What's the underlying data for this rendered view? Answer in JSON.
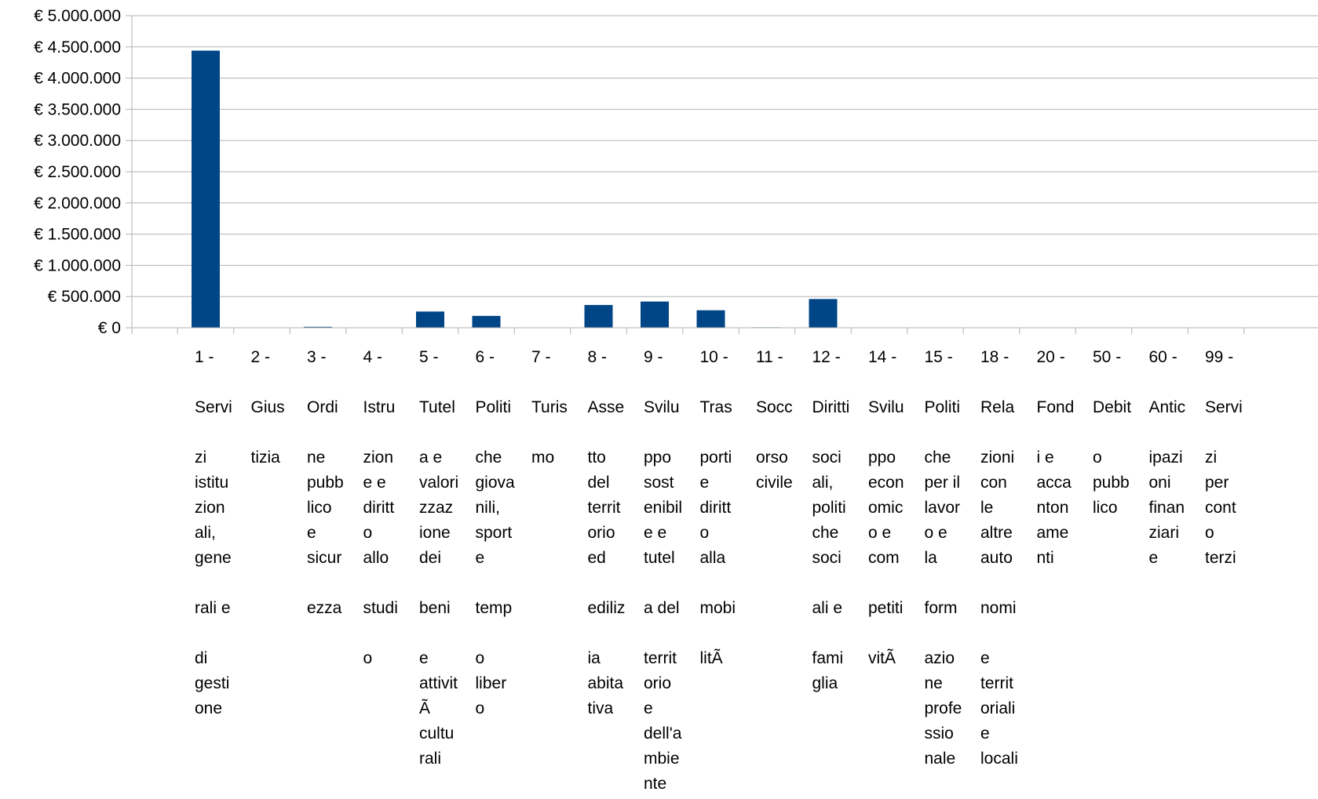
{
  "chart_data": {
    "type": "bar",
    "title": "",
    "xlabel": "",
    "ylabel": "",
    "ylim": [
      0,
      5000000
    ],
    "y_ticks": [
      "€ 0",
      "€ 500.000",
      "€ 1.000.000",
      "€ 1.500.000",
      "€ 2.000.000",
      "€ 2.500.000",
      "€ 3.000.000",
      "€ 3.500.000",
      "€ 4.000.000",
      "€ 4.500.000",
      "€ 5.000.000"
    ],
    "grid": true,
    "legend": "none",
    "bar_color": "#004586",
    "categories": [
      [
        "1 -",
        "",
        "Servi",
        "",
        "zi",
        "istitu",
        "zion",
        "ali,",
        "gene",
        "",
        "rali e",
        "",
        "di",
        "gesti",
        "one"
      ],
      [
        "2 -",
        "",
        "Gius",
        "",
        "tizia"
      ],
      [
        "3 -",
        "",
        "Ordi",
        "",
        "ne",
        "pubb",
        "lico",
        "e",
        "sicur",
        "",
        "ezza"
      ],
      [
        "4 -",
        "",
        "Istru",
        "",
        "zion",
        "e e",
        "diritt",
        "o",
        "allo",
        "",
        "studi",
        "",
        "o"
      ],
      [
        "5 -",
        "",
        "Tutel",
        "",
        "a e",
        "valori",
        "zzaz",
        "ione",
        "dei",
        "",
        "beni",
        "",
        "e",
        "attivit",
        "Ã",
        "cultu",
        "rali"
      ],
      [
        "6 -",
        "",
        "Politi",
        "",
        "che",
        "giova",
        "nili,",
        "sport",
        "e",
        "",
        "temp",
        "",
        "o",
        "liber",
        "o"
      ],
      [
        "7 -",
        "",
        "Turis",
        "",
        "mo"
      ],
      [
        "8 -",
        "",
        "Asse",
        "",
        "tto",
        "del",
        "territ",
        "orio",
        "ed",
        "",
        "ediliz",
        "",
        "ia",
        "abita",
        "tiva"
      ],
      [
        "9 -",
        "",
        "Svilu",
        "",
        "ppo",
        "sost",
        "enibil",
        "e e",
        "tutel",
        "",
        "a del",
        "",
        "territ",
        "orio",
        "e",
        "dell'a",
        "mbie",
        "nte"
      ],
      [
        "10 -",
        "",
        "Tras",
        "",
        "porti",
        "e",
        "diritt",
        "o",
        "alla",
        "",
        "mobi",
        "",
        "litÃ"
      ],
      [
        "11 -",
        "",
        "Socc",
        "",
        "orso",
        "civile"
      ],
      [
        "12 -",
        "",
        "Diritti",
        "",
        "soci",
        "ali,",
        "politi",
        "che",
        "soci",
        "",
        "ali e",
        "",
        "fami",
        "glia"
      ],
      [
        "14 -",
        "",
        "Svilu",
        "",
        "ppo",
        "econ",
        "omic",
        "o e",
        "com",
        "",
        "petiti",
        "",
        "vitÃ"
      ],
      [
        "15 -",
        "",
        "Politi",
        "",
        "che",
        "per il",
        "lavor",
        "o e",
        "la",
        "",
        "form",
        "",
        "azio",
        "ne",
        "profe",
        "ssio",
        "nale"
      ],
      [
        "18 -",
        "",
        "Rela",
        "",
        "zioni",
        "con",
        "le",
        "altre",
        "auto",
        "",
        "nomi",
        "",
        "e",
        "territ",
        "oriali",
        "e",
        "locali"
      ],
      [
        "20 -",
        "",
        "Fond",
        "",
        "i e",
        "acca",
        "nton",
        "ame",
        "nti"
      ],
      [
        "50 -",
        "",
        "Debit",
        "",
        "o",
        "pubb",
        "lico"
      ],
      [
        "60 -",
        "",
        "Antic",
        "",
        "ipazi",
        "oni",
        "finan",
        "ziari",
        "e"
      ],
      [
        "99 -",
        "",
        "Servi",
        "",
        "zi",
        "per",
        "cont",
        "o",
        "terzi"
      ]
    ],
    "values": [
      4440000,
      0,
      15000,
      0,
      260000,
      190000,
      0,
      365000,
      420000,
      280000,
      8000,
      460000,
      0,
      0,
      0,
      0,
      0,
      0,
      0
    ]
  }
}
